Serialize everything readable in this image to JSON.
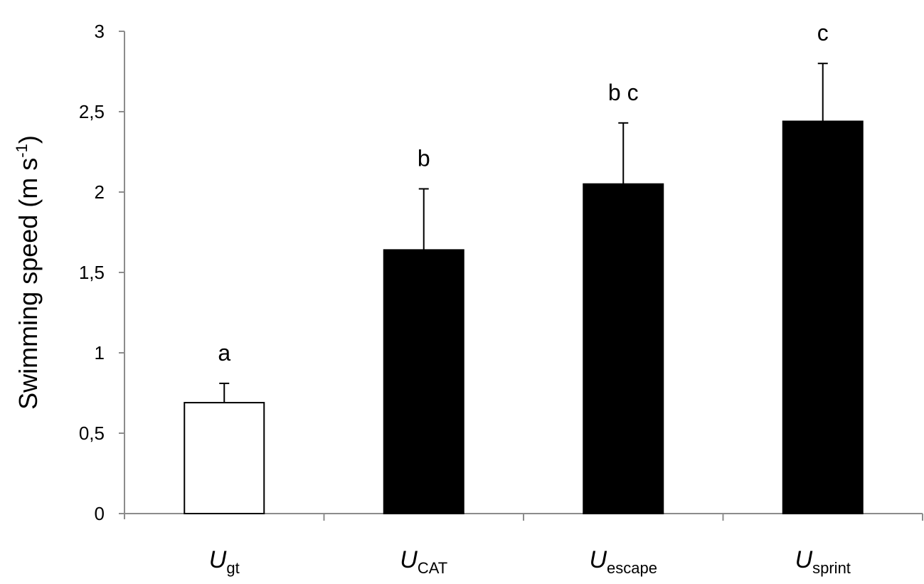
{
  "chart_data": {
    "type": "bar",
    "ylabel": "Swimming  speed (m s",
    "ylabel_sup": "-1",
    "ylabel_close": ")",
    "ylim": [
      0,
      3
    ],
    "yticks": [
      {
        "value": 0,
        "label": "0"
      },
      {
        "value": 0.5,
        "label": "0,5"
      },
      {
        "value": 1,
        "label": "1"
      },
      {
        "value": 1.5,
        "label": "1,5"
      },
      {
        "value": 2,
        "label": "2"
      },
      {
        "value": 2.5,
        "label": "2,5"
      },
      {
        "value": 3,
        "label": "3"
      }
    ],
    "grid": false,
    "legend": "none",
    "bars": [
      {
        "symbol": "U",
        "subscript": "gt",
        "value": 0.69,
        "error": 0.12,
        "sig": "a",
        "fill": "#ffffff"
      },
      {
        "symbol": "U",
        "subscript": "CAT",
        "value": 1.64,
        "error": 0.38,
        "sig": "b",
        "fill": "#000000"
      },
      {
        "symbol": "U",
        "subscript": "escape",
        "value": 2.05,
        "error": 0.38,
        "sig": "b c",
        "fill": "#000000"
      },
      {
        "symbol": "U",
        "subscript": "sprint",
        "value": 2.44,
        "error": 0.36,
        "sig": "c",
        "fill": "#000000"
      }
    ],
    "colors": {
      "axis": "#8c8c8c",
      "bar_stroke": "#000000",
      "text": "#000000"
    }
  }
}
